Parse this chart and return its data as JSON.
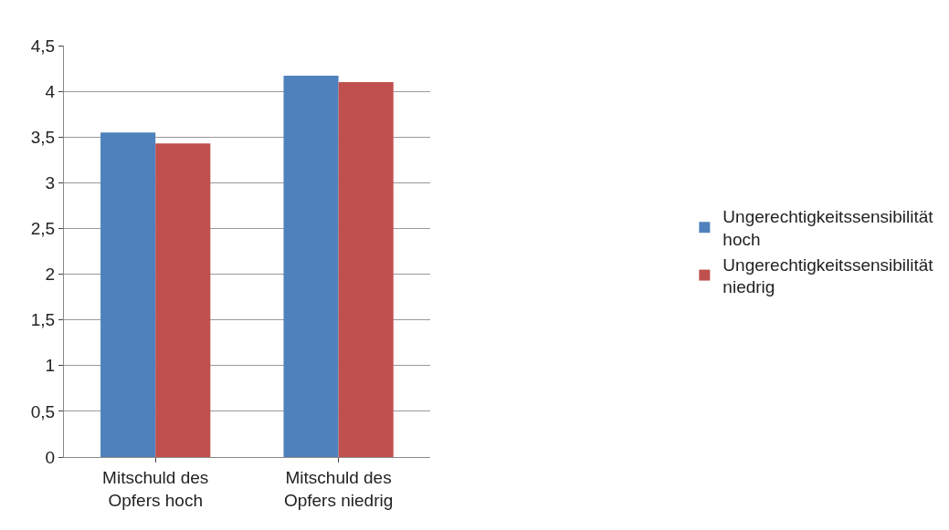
{
  "chart_data": {
    "type": "bar",
    "categories": [
      "Mitschuld des Opfers hoch",
      "Mitschuld des Opfers niedrig"
    ],
    "series": [
      {
        "name": "Ungerechtigkeitssensibilität hoch",
        "color": "#4f81bd",
        "values": [
          3.55,
          4.17
        ]
      },
      {
        "name": "Ungerechtigkeitssensibilität niedrig",
        "color": "#c0504d",
        "values": [
          3.43,
          4.1
        ]
      }
    ],
    "ylim": [
      0,
      4.5
    ],
    "yticks": [
      0,
      {
        "value": 0.5,
        "label": "0,5"
      },
      1,
      {
        "value": 1.5,
        "label": "1,5"
      },
      2,
      {
        "value": 2.5,
        "label": "2,5"
      },
      3,
      {
        "value": 3.5,
        "label": "3,5"
      },
      4,
      {
        "value": 4.5,
        "label": "4,5"
      }
    ],
    "grid": "y",
    "legend": "right"
  }
}
